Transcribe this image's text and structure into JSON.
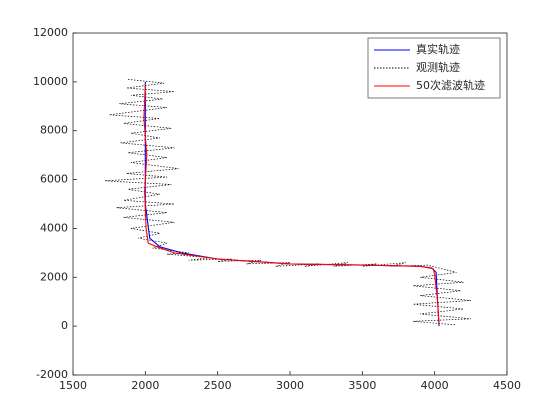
{
  "chart_data": {
    "type": "line",
    "xlim": [
      1500,
      4500
    ],
    "xticks": [
      1500,
      2000,
      2500,
      3000,
      3500,
      4000,
      4500
    ],
    "ylim": [
      -2000,
      12000
    ],
    "yticks": [
      -2000,
      0,
      2000,
      4000,
      6000,
      8000,
      10000,
      12000
    ],
    "legend": "northeast",
    "box": true,
    "series": [
      {
        "name": "真实轨迹",
        "color": "#0000ff",
        "style": "solid",
        "x": [
          2000,
          2000,
          2000,
          2030,
          2100,
          2250,
          2500,
          3000,
          3500,
          3900,
          3980,
          4010,
          4020,
          4030
        ],
        "values": [
          10000,
          8000,
          5000,
          3600,
          3250,
          3000,
          2750,
          2550,
          2500,
          2450,
          2380,
          2200,
          1000,
          0
        ]
      },
      {
        "name": "观测轨迹",
        "color": "#000000",
        "style": "dotted",
        "x": [
          1880,
          2130,
          1870,
          2200,
          1900,
          2120,
          1820,
          2150,
          1750,
          2100,
          1850,
          2180,
          1900,
          2100,
          1830,
          2200,
          1880,
          2150,
          1900,
          2230,
          1870,
          2150,
          1720,
          2180,
          1880,
          2100,
          1850,
          2200,
          1800,
          2150,
          1850,
          2200,
          1900,
          2100,
          1950,
          2150,
          2050,
          2300,
          2150,
          2450,
          2300,
          2600,
          2500,
          2800,
          2700,
          3000,
          2900,
          3200,
          3100,
          3400,
          3300,
          3600,
          3500,
          3800,
          3700,
          3950,
          4150,
          3900,
          4200,
          3850,
          4180,
          3900,
          4250,
          3850,
          4200,
          3900,
          4250,
          3850,
          4150
        ],
        "values": [
          10100,
          9950,
          9750,
          9600,
          9450,
          9300,
          9100,
          8950,
          8650,
          8500,
          8300,
          8100,
          7900,
          7700,
          7500,
          7300,
          7100,
          6900,
          6700,
          6450,
          6250,
          6100,
          5950,
          5800,
          5600,
          5400,
          5150,
          5000,
          4850,
          4650,
          4450,
          4250,
          4000,
          3800,
          3600,
          3400,
          3200,
          3000,
          2950,
          2800,
          2700,
          2750,
          2650,
          2700,
          2550,
          2600,
          2450,
          2550,
          2450,
          2600,
          2450,
          2550,
          2450,
          2600,
          2450,
          2500,
          2200,
          2000,
          1800,
          1650,
          1450,
          1250,
          1050,
          900,
          700,
          500,
          300,
          200,
          50
        ]
      },
      {
        "name": "50次滤波轨迹",
        "color": "#ff0000",
        "style": "solid",
        "x": [
          2000,
          1990,
          2010,
          1995,
          2005,
          2020,
          2080,
          2200,
          2500,
          3000,
          3500,
          3900,
          3990,
          4000,
          4020,
          4030
        ],
        "values": [
          9900,
          8500,
          7000,
          5500,
          4000,
          3400,
          3250,
          3000,
          2750,
          2550,
          2500,
          2450,
          2350,
          2100,
          1000,
          100
        ]
      }
    ]
  }
}
